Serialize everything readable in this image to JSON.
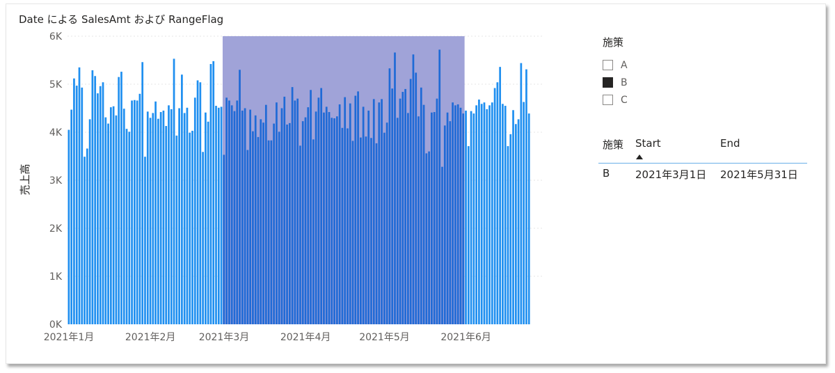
{
  "title": "Date による SalesAmt および RangeFlag",
  "colors": {
    "bar": "#1f8ff0",
    "bar_highlight": "#1f6ad6",
    "range_band": "#a0a3d8",
    "gridline": "#e6e6e6"
  },
  "chart_data": {
    "type": "bar",
    "title": "Date による SalesAmt および RangeFlag",
    "xlabel": "",
    "ylabel": "売上高",
    "ylim": [
      0,
      6000
    ],
    "yticks": [
      0,
      1000,
      2000,
      3000,
      4000,
      5000,
      6000
    ],
    "ytick_labels": [
      "0K",
      "1K",
      "2K",
      "3K",
      "4K",
      "5K",
      "6K"
    ],
    "x_range": [
      "2021-01-01",
      "2021-07-01"
    ],
    "xtick_labels": [
      {
        "date": "2021-01-01",
        "label": "2021年1月"
      },
      {
        "date": "2021-02-01",
        "label": "2021年2月"
      },
      {
        "date": "2021-03-01",
        "label": "2021年3月"
      },
      {
        "date": "2021-04-01",
        "label": "2021年4月"
      },
      {
        "date": "2021-05-01",
        "label": "2021年5月"
      },
      {
        "date": "2021-06-01",
        "label": "2021年6月"
      }
    ],
    "grid": true,
    "highlight_range": {
      "start": "2021-03-01",
      "end": "2021-05-31"
    },
    "series": [
      {
        "x_start": "2021-01-01",
        "x_interval": "1 day",
        "values": [
          4050,
          4470,
          5120,
          4970,
          5350,
          4930,
          3490,
          3660,
          4270,
          5290,
          5170,
          4810,
          4960,
          5040,
          4310,
          4180,
          4520,
          4540,
          4350,
          5150,
          5260,
          4490,
          4070,
          4010,
          4660,
          4670,
          4660,
          4800,
          5460,
          3490,
          4430,
          4300,
          4400,
          4640,
          4280,
          4420,
          4450,
          4130,
          4560,
          4480,
          5530,
          3930,
          4500,
          5200,
          4400,
          4510,
          3990,
          4030,
          4720,
          5080,
          5040,
          3590,
          4410,
          4220,
          5420,
          5480,
          4550,
          4510,
          4530,
          3530,
          4720,
          4660,
          4560,
          4440,
          4660,
          5300,
          4450,
          4500,
          3630,
          4470,
          4020,
          4350,
          3900,
          4270,
          4200,
          4570,
          3830,
          3830,
          4180,
          4620,
          4010,
          4500,
          4740,
          4160,
          4190,
          4940,
          4660,
          4700,
          3720,
          4230,
          4310,
          4520,
          4880,
          3850,
          4430,
          4720,
          4920,
          4410,
          4530,
          4420,
          4300,
          4290,
          4330,
          4580,
          4090,
          4730,
          4080,
          4600,
          3820,
          4760,
          4850,
          3890,
          4530,
          3910,
          4450,
          3880,
          4690,
          3770,
          4620,
          4690,
          3990,
          4200,
          5330,
          4910,
          5660,
          4300,
          4700,
          4840,
          4900,
          4400,
          5110,
          5620,
          5240,
          4330,
          4930,
          4570,
          3560,
          3600,
          4410,
          4420,
          4700,
          5720,
          3280,
          4140,
          4410,
          4230,
          4620,
          4560,
          4580,
          4510,
          4390,
          4450,
          3710,
          4440,
          4390,
          4560,
          4680,
          4590,
          4620,
          4480,
          4560,
          4620,
          4920,
          5040,
          5360,
          4590,
          4550,
          3710,
          3960,
          4460,
          4170,
          4270,
          5440,
          4630,
          5310,
          4390
        ],
        "highlight_flags": "2021-03-01 to 2021-05-31"
      }
    ]
  },
  "slicer": {
    "title": "施策",
    "items": [
      {
        "label": "A",
        "checked": false
      },
      {
        "label": "B",
        "checked": true
      },
      {
        "label": "C",
        "checked": false
      }
    ]
  },
  "table": {
    "headers": {
      "measure": "施策",
      "start": "Start",
      "end": "End"
    },
    "rows": [
      {
        "measure": "B",
        "start": "2021年3月1日",
        "end": "2021年5月31日"
      }
    ]
  }
}
